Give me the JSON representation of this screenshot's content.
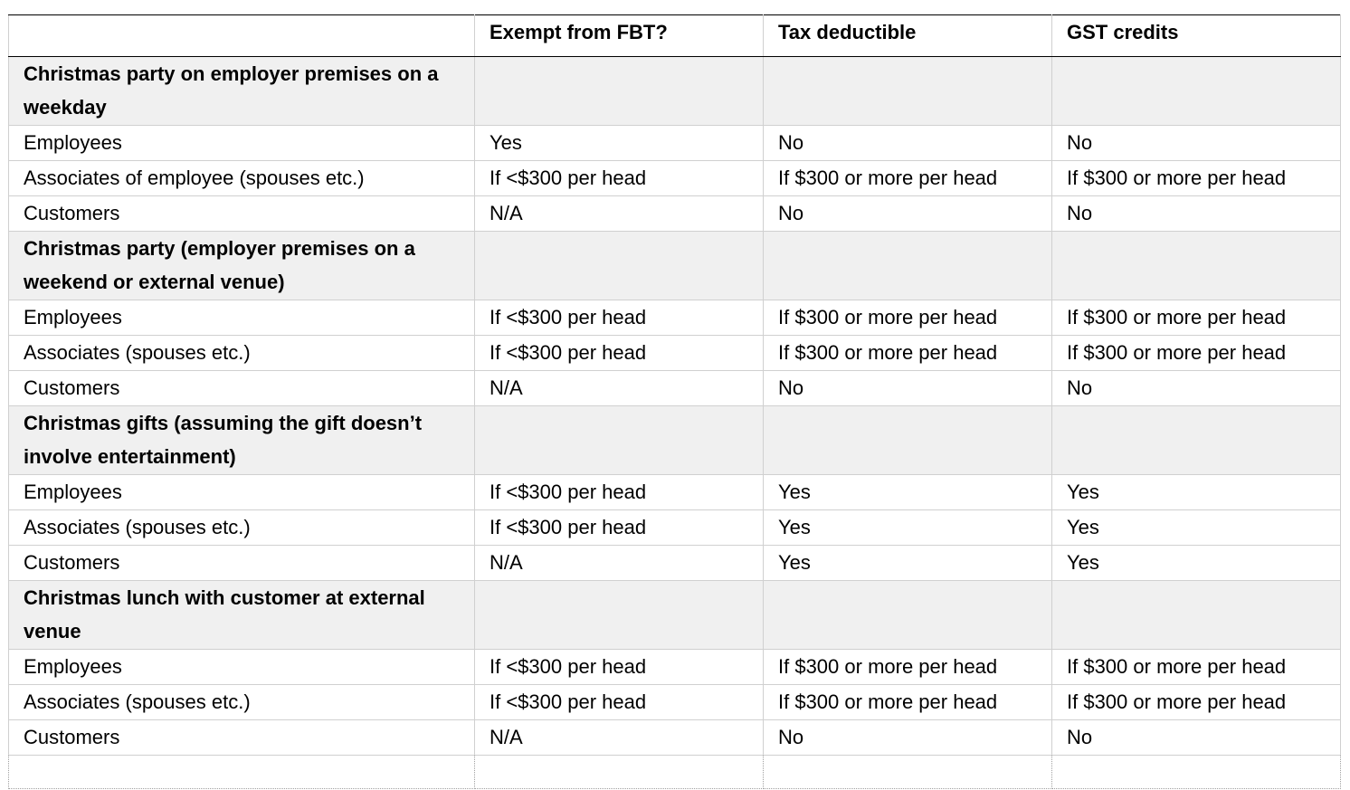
{
  "table": {
    "headers": [
      "",
      "Exempt from FBT?",
      "Tax deductible",
      "GST credits"
    ],
    "sections": [
      {
        "title": "Christmas party on employer premises on a weekday",
        "rows": [
          [
            "Employees",
            "Yes",
            "No",
            "No"
          ],
          [
            "Associates of employee (spouses etc.)",
            "If <$300 per head",
            "If $300 or more per head",
            "If $300 or more per head"
          ],
          [
            "Customers",
            "N/A",
            "No",
            "No"
          ]
        ]
      },
      {
        "title": "Christmas party (employer premises on a weekend or external venue)",
        "rows": [
          [
            "Employees",
            "If <$300 per head",
            "If $300 or more per head",
            "If $300 or more per head"
          ],
          [
            "Associates (spouses etc.)",
            "If <$300 per head",
            "If $300 or more per head",
            "If $300 or more per head"
          ],
          [
            "Customers",
            "N/A",
            "No",
            "No"
          ]
        ]
      },
      {
        "title": "Christmas gifts (assuming the gift doesn’t involve entertainment)",
        "rows": [
          [
            "Employees",
            "If <$300 per head",
            "Yes",
            "Yes"
          ],
          [
            "Associates (spouses etc.)",
            "If <$300 per head",
            "Yes",
            "Yes"
          ],
          [
            "Customers",
            "N/A",
            "Yes",
            "Yes"
          ]
        ]
      },
      {
        "title": "Christmas lunch with customer at external venue",
        "rows": [
          [
            "Employees",
            "If <$300 per head",
            "If $300 or more per head",
            "If $300 or more per head"
          ],
          [
            "Associates (spouses etc.)",
            "If <$300 per head",
            "If $300 or more per head",
            "If $300 or more per head"
          ],
          [
            "Customers",
            "N/A",
            "No",
            "No"
          ]
        ]
      }
    ]
  }
}
